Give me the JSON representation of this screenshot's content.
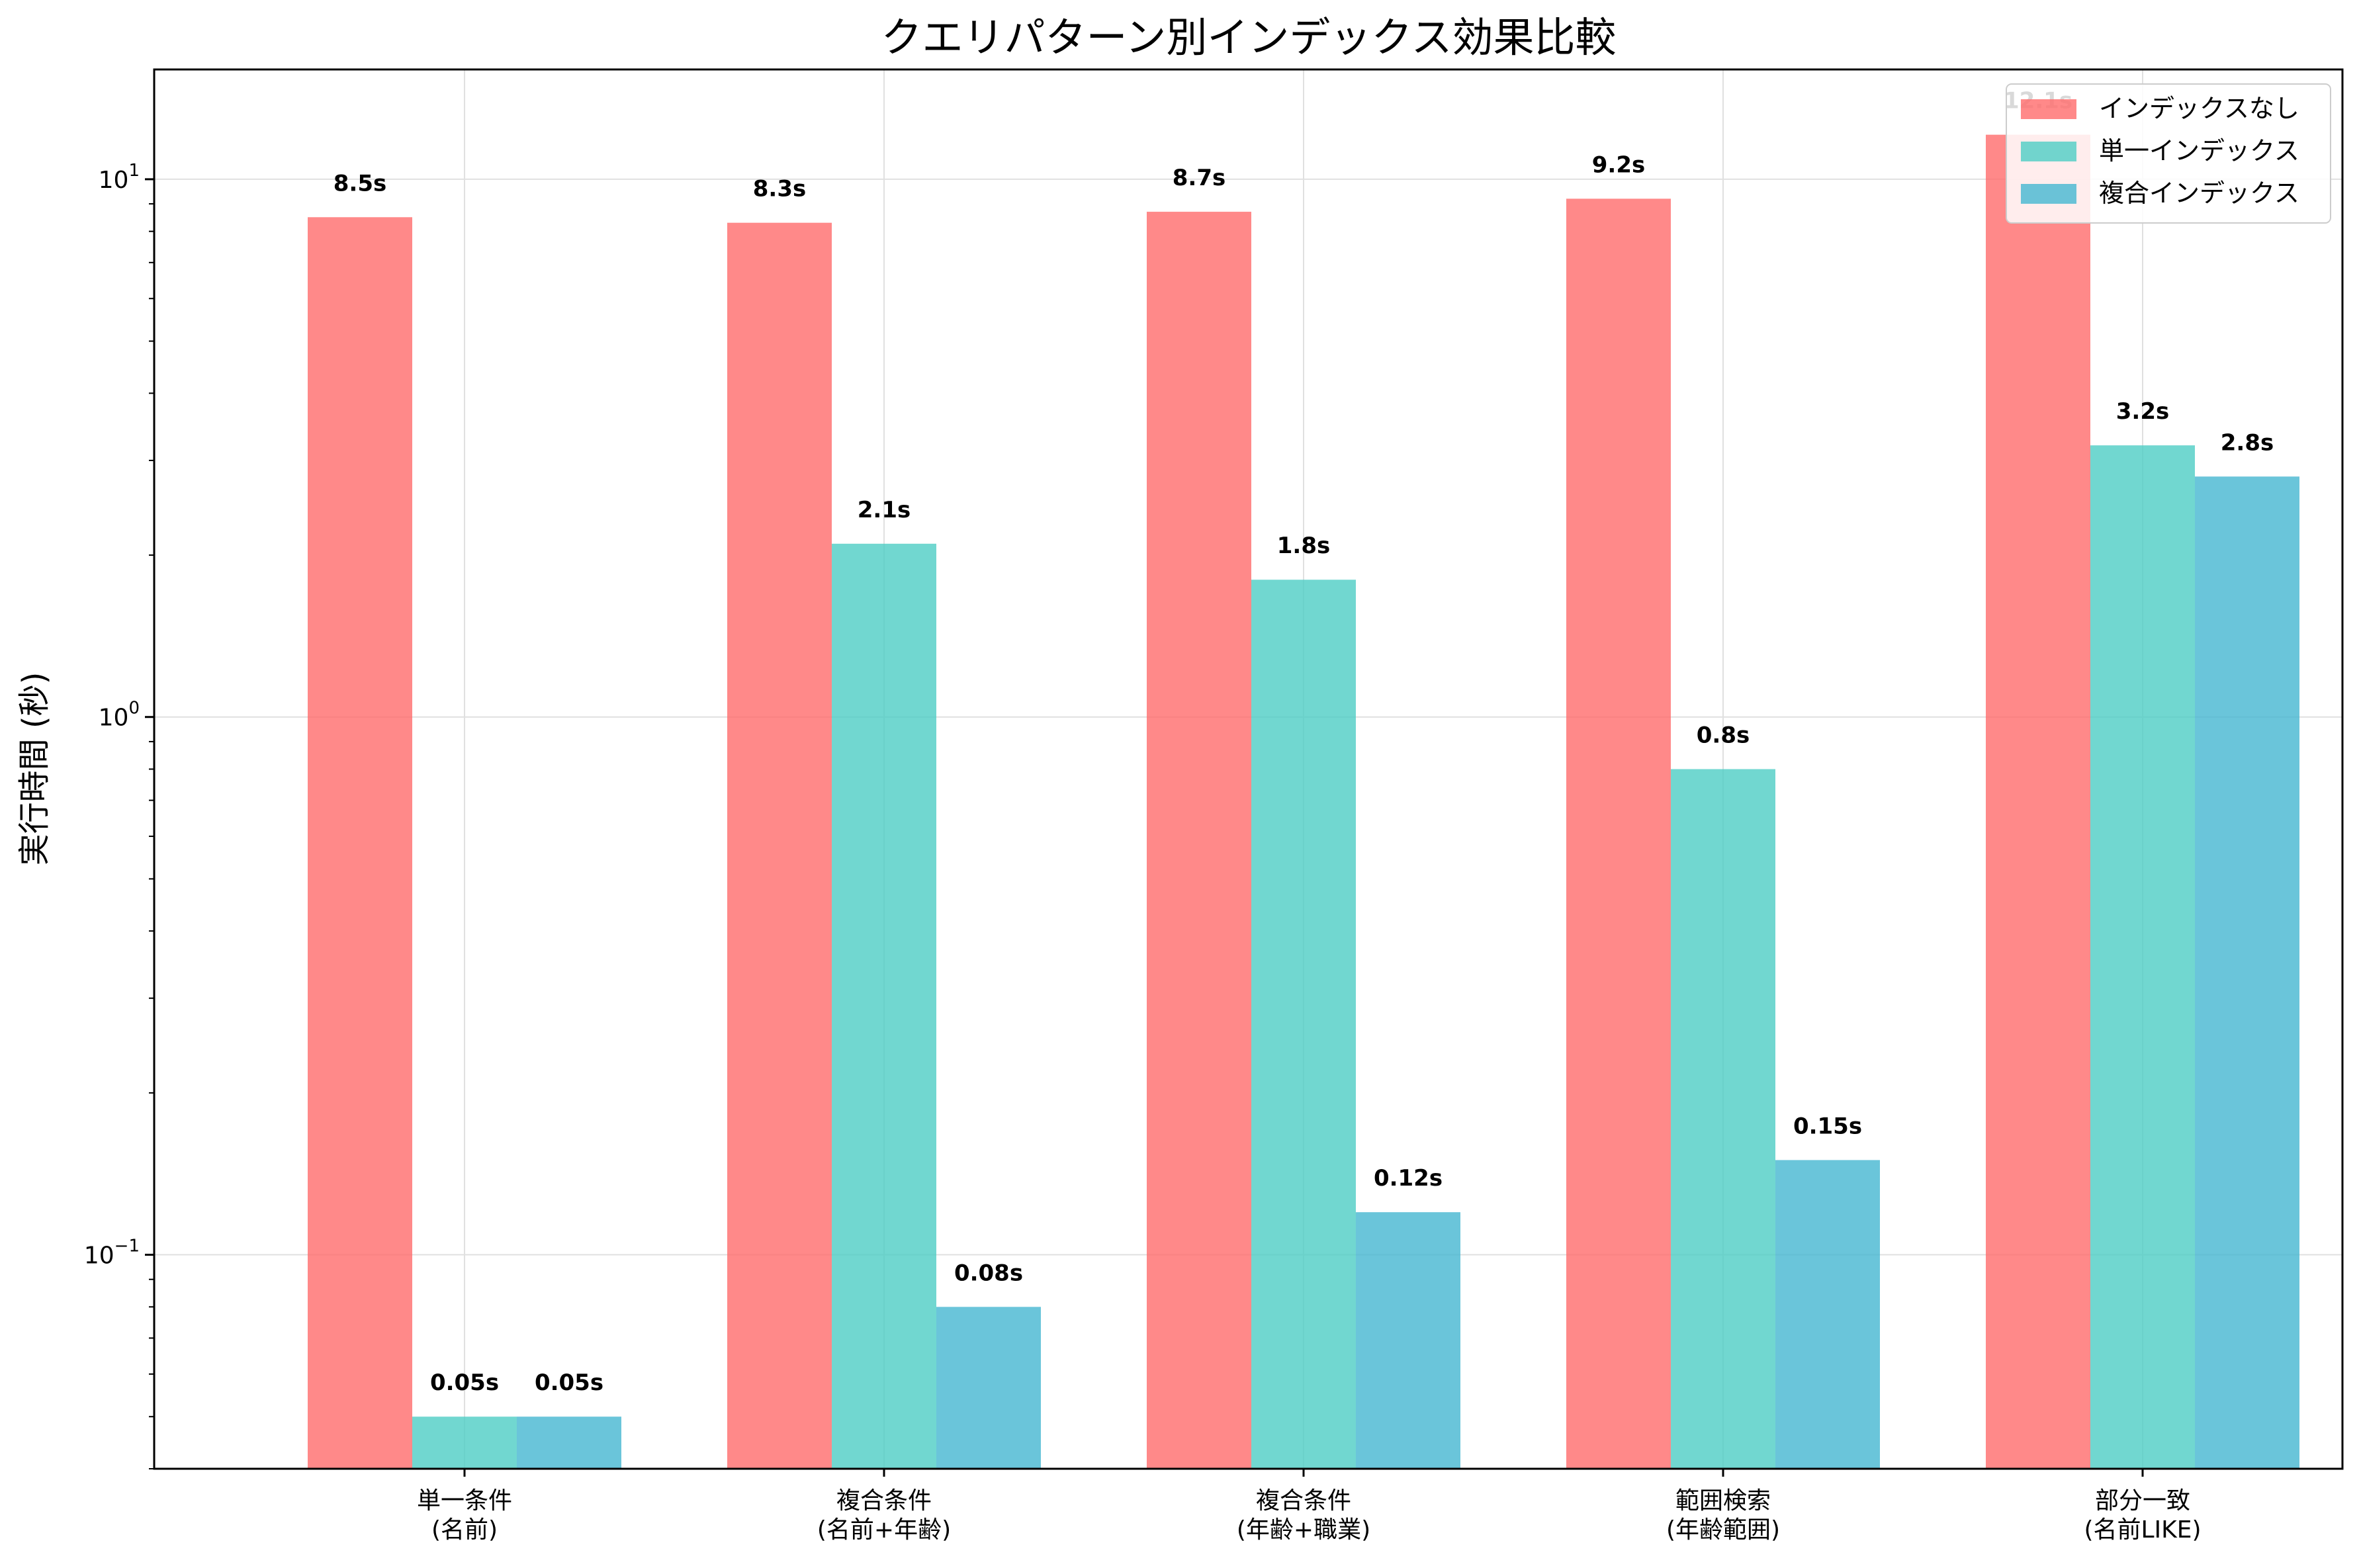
{
  "chart_data": {
    "type": "bar",
    "title": "クエリパターン別インデックス効果比較",
    "ylabel": "実行時間 (秒)",
    "xlabel": "",
    "yscale": "log",
    "ylim": [
      0.04,
      16
    ],
    "yticks": [
      {
        "value": 0.1,
        "base": "10",
        "exp": "−1"
      },
      {
        "value": 1,
        "base": "10",
        "exp": "0"
      },
      {
        "value": 10,
        "base": "10",
        "exp": "1"
      }
    ],
    "grid": true,
    "legend_position": "top-right",
    "categories": [
      [
        "単一条件",
        "(名前)"
      ],
      [
        "複合条件",
        "(名前+年齢)"
      ],
      [
        "複合条件",
        "(年齢+職業)"
      ],
      [
        "範囲検索",
        "(年齢範囲)"
      ],
      [
        "部分一致",
        "(名前LIKE)"
      ]
    ],
    "series": [
      {
        "name": "インデックスなし",
        "color": "#FF6B6B",
        "values": [
          8.5,
          8.3,
          8.7,
          9.2,
          12.1
        ],
        "labels": [
          "8.5s",
          "8.3s",
          "8.7s",
          "9.2s",
          "12.1s"
        ]
      },
      {
        "name": "単一インデックス",
        "color": "#4ECDC4",
        "values": [
          0.05,
          2.1,
          1.8,
          0.8,
          3.2
        ],
        "labels": [
          "0.05s",
          "2.1s",
          "1.8s",
          "0.8s",
          "3.2s"
        ]
      },
      {
        "name": "複合インデックス",
        "color": "#45B7D1",
        "values": [
          0.05,
          0.08,
          0.12,
          0.15,
          2.8
        ],
        "labels": [
          "0.05s",
          "0.08s",
          "0.12s",
          "0.15s",
          "2.8s"
        ]
      }
    ]
  }
}
